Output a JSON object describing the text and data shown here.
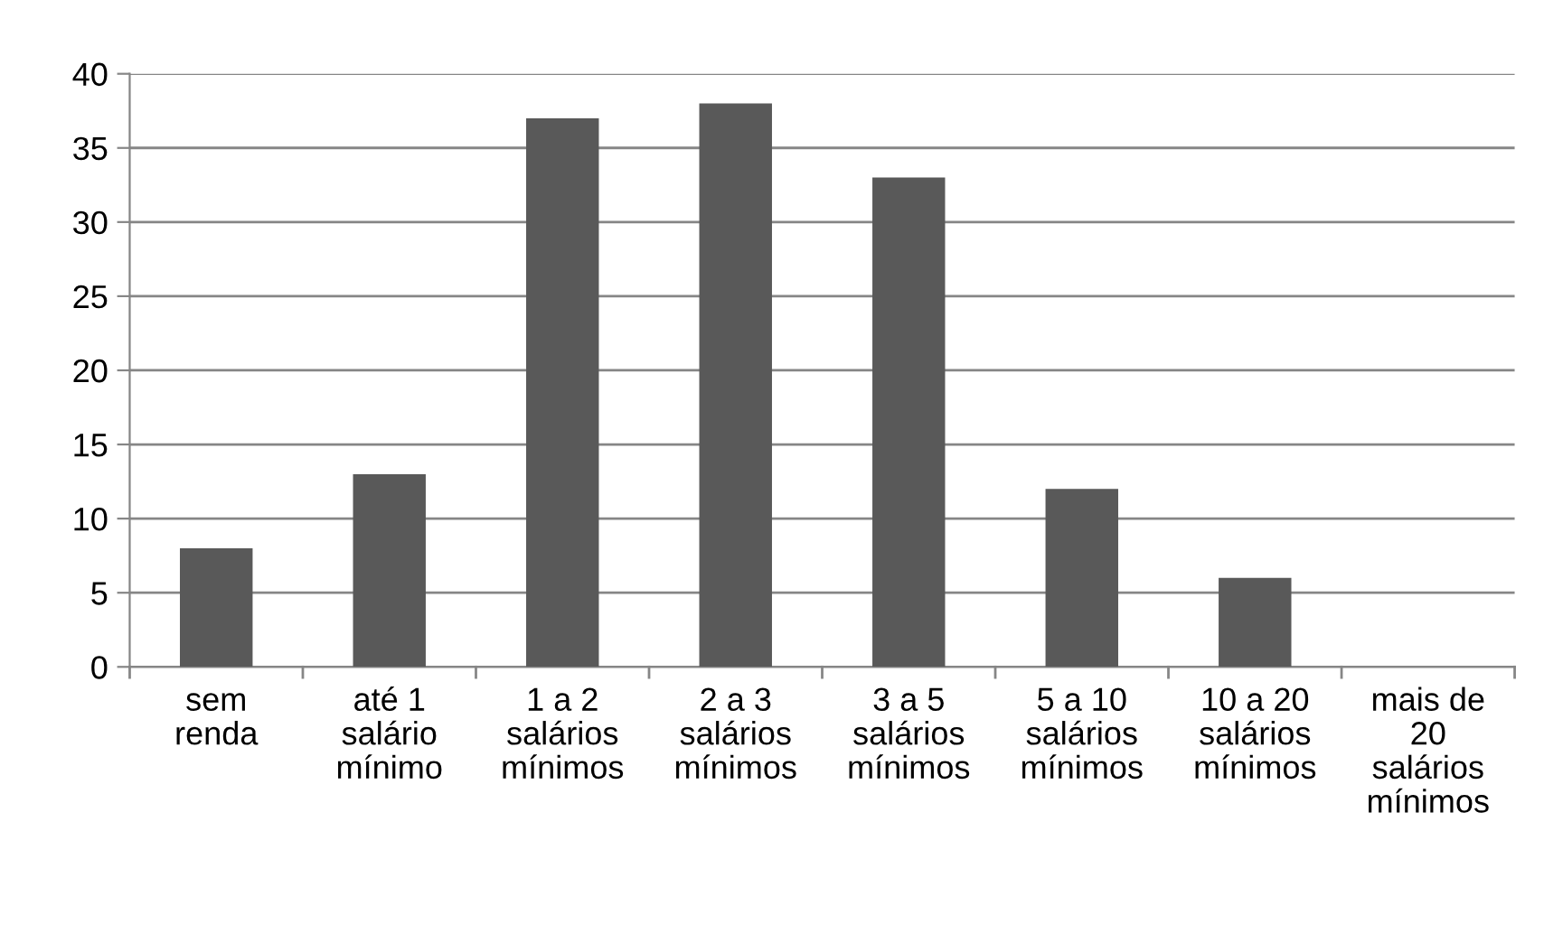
{
  "chart_data": {
    "type": "bar",
    "categories": [
      "sem\nrenda",
      "até 1\nsalário\nmínimo",
      "1 a 2\nsalários\nmínimos",
      "2 a 3\nsalários\nmínimos",
      "3 a 5\nsalários\nmínimos",
      "5 a 10\nsalários\nmínimos",
      "10 a 20\nsalários\nmínimos",
      "mais de\n20\nsalários\nmínimos"
    ],
    "values": [
      8,
      13,
      37,
      38,
      33,
      12,
      6,
      0
    ],
    "color": "#595959",
    "ylim": [
      0,
      40
    ],
    "yticks": [
      0,
      5,
      10,
      15,
      20,
      25,
      30,
      35,
      40
    ],
    "grid": "y",
    "legend": false
  }
}
